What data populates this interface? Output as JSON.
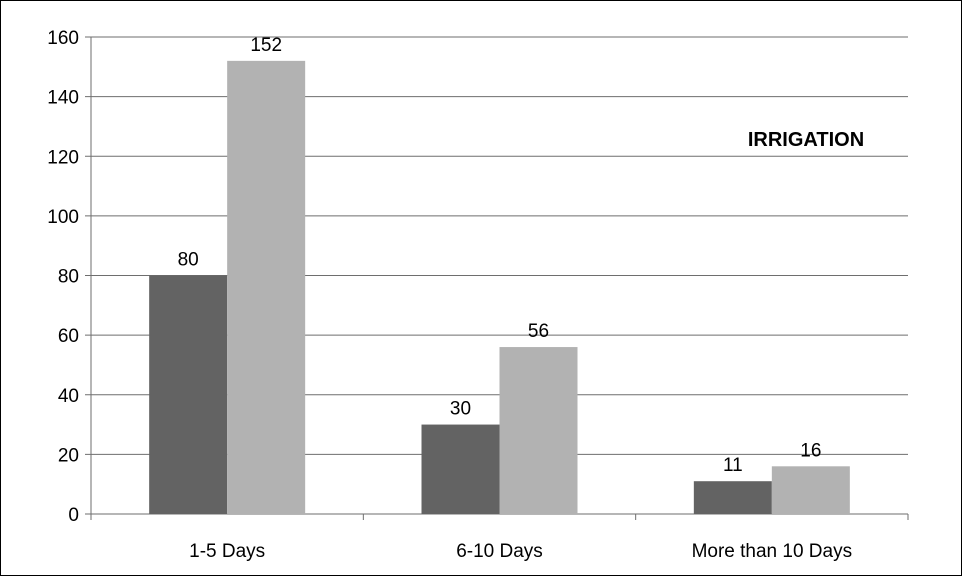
{
  "chart_data": {
    "type": "bar",
    "title": "IRRIGATION",
    "categories": [
      "1-5 Days",
      "6-10 Days",
      "More than 10 Days"
    ],
    "series": [
      {
        "values": [
          80,
          30,
          11
        ],
        "color": "#636363"
      },
      {
        "values": [
          152,
          56,
          16
        ],
        "color": "#b2b2b2"
      }
    ],
    "xlabel": "",
    "ylabel": "",
    "ylim": [
      0,
      160
    ],
    "yticks": [
      0,
      20,
      40,
      60,
      80,
      100,
      120,
      140,
      160
    ],
    "grid": true,
    "legend": "none",
    "data_labels": true
  }
}
